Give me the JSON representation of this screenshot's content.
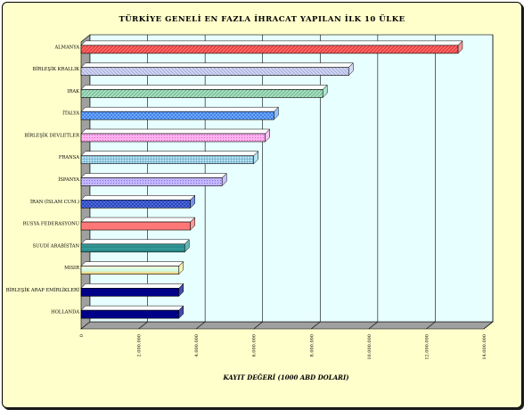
{
  "chart_data": {
    "type": "bar",
    "orientation": "horizontal",
    "title": "TÜRKİYE GENELİ EN FAZLA İHRACAT YAPILAN İLK 10 ÜLKE",
    "xlabel": "KAYIT DEĞERİ (1000 ABD DOLARI)",
    "ylabel": "",
    "xlim": [
      0,
      14000000
    ],
    "ticks": [
      0,
      2000000,
      4000000,
      6000000,
      8000000,
      10000000,
      12000000,
      14000000
    ],
    "tick_labels": [
      "0",
      "2.000.000",
      "4.000.000",
      "6.000.000",
      "8.000.000",
      "10.000.000",
      "12.000.000",
      "14.000.000"
    ],
    "grid": true,
    "categories": [
      "ALMANYA",
      "BİRLEŞİK KRALLIK",
      "IRAK",
      "İTALYA",
      "BİRLEŞİK DEVLETLER",
      "FRANSA",
      "İSPANYA",
      "İRAN (İSLAM CUM.)",
      "RUSYA FEDERASYONU",
      "SUUDİ ARABİSTAN",
      "MISIR",
      "BİRLEŞİK ARAP EMİRLİKLERİ",
      "HOLLANDA"
    ],
    "values": [
      13100000,
      9300000,
      8400000,
      6700000,
      6400000,
      6000000,
      4900000,
      3800000,
      3800000,
      3600000,
      3400000,
      3400000,
      3400000
    ],
    "colors": [
      "#ff6666",
      "#c8ccf0",
      "#99ddbb",
      "#66aaff",
      "#ffaaee",
      "#aad8ee",
      "#bbaaff",
      "#4466dd",
      "#ff7070",
      "#2e9999",
      "#ffee99",
      "#000088",
      "#000088"
    ]
  }
}
